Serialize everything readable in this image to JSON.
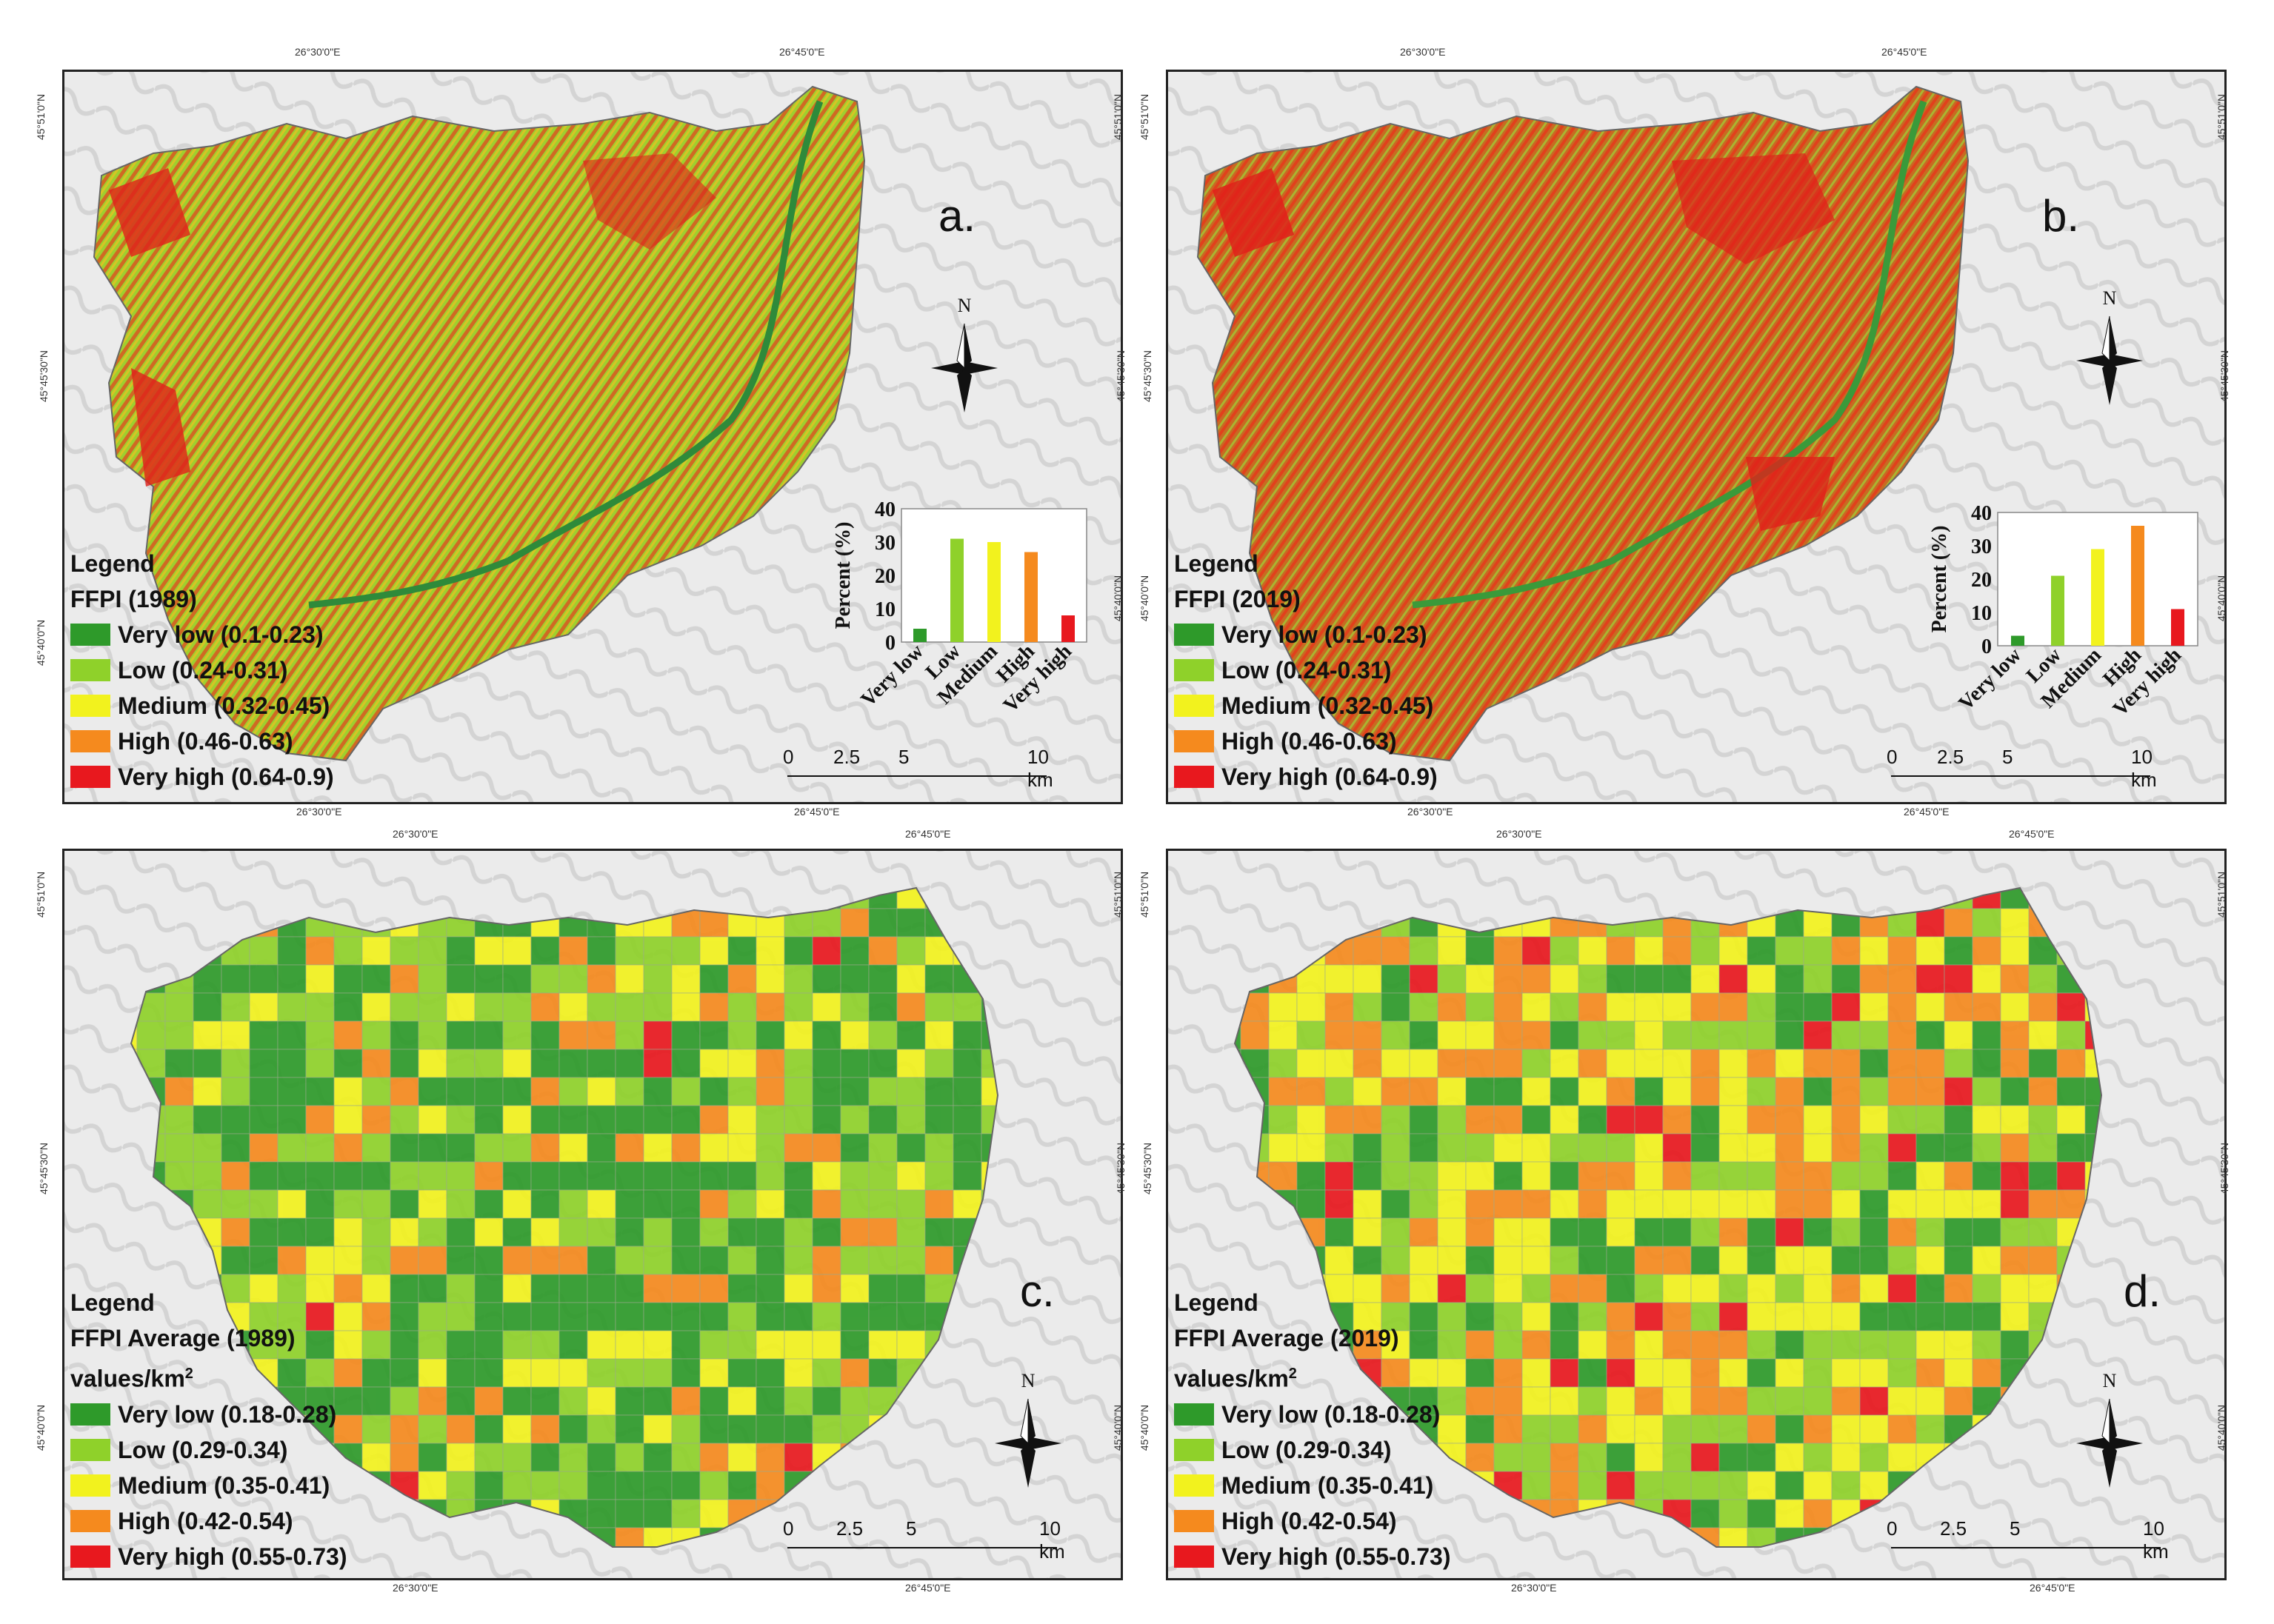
{
  "colors": {
    "very_low": "#2e9a2a",
    "low": "#8fd12a",
    "medium": "#f2f21e",
    "high": "#f58a1e",
    "very_high": "#e8181e"
  },
  "panels": [
    {
      "letter": "a.",
      "legend_heading": "Legend",
      "legend_title": "FFPI (1989)",
      "legend_title2": "",
      "items": [
        "Very low (0.1-0.23)",
        "Low (0.24-0.31)",
        "Medium (0.32-0.45)",
        "High (0.46-0.63)",
        "Very high (0.64-0.9)"
      ],
      "top_labels": [
        "26°30'0\"E",
        "26°45'0\"E"
      ],
      "bottom_labels": [
        "26°30'0\"E",
        "26°45'0\"E"
      ],
      "left_labels": [
        "45°51'0\"N",
        "45°45'30\"N",
        "45°40'0\"N"
      ],
      "right_labels": [
        "45°51'0\"N",
        "45°45'30\"N",
        "45°40'0\"N"
      ],
      "north": "N",
      "scale": [
        "0",
        "2.5",
        "5",
        "10 km"
      ]
    },
    {
      "letter": "b.",
      "legend_heading": "Legend",
      "legend_title": "FFPI (2019)",
      "legend_title2": "",
      "items": [
        "Very low (0.1-0.23)",
        "Low (0.24-0.31)",
        "Medium (0.32-0.45)",
        "High (0.46-0.63)",
        "Very high (0.64-0.9)"
      ],
      "top_labels": [
        "26°30'0\"E",
        "26°45'0\"E"
      ],
      "bottom_labels": [
        "26°30'0\"E",
        "26°45'0\"E"
      ],
      "left_labels": [
        "45°51'0\"N",
        "45°45'30\"N",
        "45°40'0\"N"
      ],
      "right_labels": [
        "45°51'0\"N",
        "45°45'30\"N",
        "45°40'0\"N"
      ],
      "north": "N",
      "scale": [
        "0",
        "2.5",
        "5",
        "10 km"
      ]
    },
    {
      "letter": "c.",
      "legend_heading": "Legend",
      "legend_title": "FFPI Average (1989)",
      "legend_title2": "values/km",
      "legend_sup": "2",
      "items": [
        "Very low (0.18-0.28)",
        "Low (0.29-0.34)",
        "Medium (0.35-0.41)",
        "High (0.42-0.54)",
        "Very high (0.55-0.73)"
      ],
      "top_labels": [
        "26°30'0\"E",
        "26°45'0\"E"
      ],
      "bottom_labels": [
        "26°30'0\"E",
        "26°45'0\"E"
      ],
      "left_labels": [
        "45°51'0\"N",
        "45°45'30\"N",
        "45°40'0\"N"
      ],
      "right_labels": [
        "45°51'0\"N",
        "45°45'30\"N",
        "45°40'0\"N"
      ],
      "north": "N",
      "scale": [
        "0",
        "2.5",
        "5",
        "10 km"
      ]
    },
    {
      "letter": "d.",
      "legend_heading": "Legend",
      "legend_title": "FFPI Average (2019)",
      "legend_title2": "values/km",
      "legend_sup": "2",
      "items": [
        "Very low (0.18-0.28)",
        "Low (0.29-0.34)",
        "Medium (0.35-0.41)",
        "High (0.42-0.54)",
        "Very high (0.55-0.73)"
      ],
      "top_labels": [
        "26°30'0\"E",
        "26°45'0\"E"
      ],
      "bottom_labels": [
        "26°30'0\"E",
        "26°45'0\"E"
      ],
      "left_labels": [
        "45°51'0\"N",
        "45°45'30\"N",
        "45°40'0\"N"
      ],
      "right_labels": [
        "45°51'0\"N",
        "45°45'30\"N",
        "45°40'0\"N"
      ],
      "north": "N",
      "scale": [
        "0",
        "2.5",
        "5",
        "10 km"
      ]
    }
  ],
  "chart_data": [
    {
      "type": "bar",
      "panel": "a",
      "categories": [
        "Very low",
        "Low",
        "Medium",
        "High",
        "Very high"
      ],
      "values": [
        4,
        31,
        30,
        27,
        8
      ],
      "ylabel": "Percent (%)",
      "ylim": [
        0,
        40
      ],
      "yticks": [
        "0",
        "10",
        "20",
        "30",
        "40"
      ],
      "grid": false
    },
    {
      "type": "bar",
      "panel": "b",
      "categories": [
        "Very low",
        "Low",
        "Medium",
        "High",
        "Very high"
      ],
      "values": [
        3,
        21,
        29,
        36,
        11
      ],
      "ylabel": "Percent (%)",
      "ylim": [
        0,
        40
      ],
      "yticks": [
        "0",
        "10",
        "20",
        "30",
        "40"
      ],
      "grid": false
    }
  ]
}
